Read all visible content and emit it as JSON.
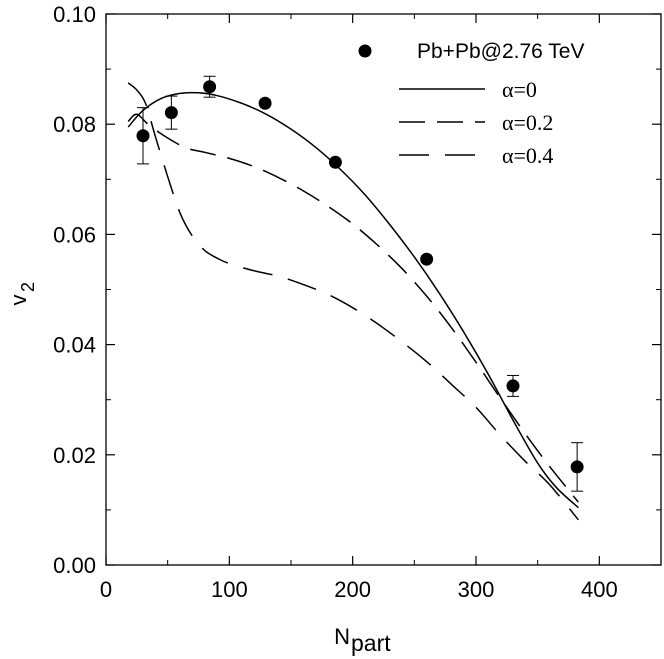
{
  "chart_data": {
    "type": "line",
    "title": "",
    "xlabel": "N",
    "xlabel_sub": "part",
    "ylabel": "v",
    "ylabel_sub": "2",
    "xlim": [
      0,
      450
    ],
    "ylim": [
      0.0,
      0.1
    ],
    "xticks": [
      0,
      100,
      200,
      300,
      400
    ],
    "xtick_labels": [
      "0",
      "100",
      "200",
      "300",
      "400"
    ],
    "yticks": [
      0.0,
      0.02,
      0.04,
      0.06,
      0.08,
      0.1
    ],
    "ytick_labels": [
      "0.00",
      "0.02",
      "0.04",
      "0.06",
      "0.08",
      "0.10"
    ],
    "grid": false,
    "legend_position": "top-right",
    "scatter": {
      "name": "Pb+Pb@2.76 TeV",
      "points": [
        {
          "x": 30,
          "y": 0.0779,
          "err": 0.0051
        },
        {
          "x": 53,
          "y": 0.0821,
          "err": 0.003
        },
        {
          "x": 84,
          "y": 0.0868,
          "err": 0.0019
        },
        {
          "x": 129,
          "y": 0.0838,
          "err": 0
        },
        {
          "x": 186,
          "y": 0.0731,
          "err": 0
        },
        {
          "x": 260,
          "y": 0.0555,
          "err": 0
        },
        {
          "x": 330,
          "y": 0.0325,
          "err": 0.0019
        },
        {
          "x": 382,
          "y": 0.0178,
          "err": 0.0044
        }
      ]
    },
    "series": [
      {
        "name": "α=0",
        "dash": "solid",
        "x": [
          18,
          30,
          45,
          60,
          75,
          90,
          110,
          130,
          150,
          170,
          190,
          210,
          230,
          250,
          270,
          290,
          310,
          330,
          350,
          365,
          383
        ],
        "y": [
          0.0795,
          0.0825,
          0.0847,
          0.0856,
          0.0857,
          0.0852,
          0.0838,
          0.0818,
          0.0791,
          0.0758,
          0.0718,
          0.0672,
          0.0618,
          0.0559,
          0.0494,
          0.0423,
          0.0346,
          0.0263,
          0.0185,
          0.0141,
          0.0104
        ]
      },
      {
        "name": "α=0.2",
        "dash": "long",
        "x": [
          18,
          25,
          35,
          50,
          65,
          80,
          100,
          120,
          140,
          160,
          180,
          200,
          220,
          240,
          260,
          280,
          300,
          320,
          340,
          360,
          383
        ],
        "y": [
          0.0805,
          0.0818,
          0.0798,
          0.0775,
          0.0757,
          0.0749,
          0.0738,
          0.0723,
          0.0703,
          0.0679,
          0.0651,
          0.0619,
          0.0581,
          0.0538,
          0.0488,
          0.0431,
          0.0368,
          0.0302,
          0.0238,
          0.0178,
          0.0114
        ]
      },
      {
        "name": "α=0.4",
        "dash": "longgap",
        "x": [
          18,
          25,
          32,
          40,
          50,
          60,
          70,
          80,
          90,
          100,
          120,
          140,
          160,
          180,
          200,
          220,
          240,
          260,
          280,
          300,
          320,
          340,
          360,
          383
        ],
        "y": [
          0.0875,
          0.0862,
          0.0838,
          0.0778,
          0.0705,
          0.0639,
          0.0597,
          0.0571,
          0.0557,
          0.0547,
          0.0534,
          0.0524,
          0.0509,
          0.0491,
          0.0467,
          0.0438,
          0.0405,
          0.0369,
          0.0328,
          0.0286,
          0.0235,
          0.0188,
          0.0145,
          0.0082
        ]
      }
    ]
  }
}
